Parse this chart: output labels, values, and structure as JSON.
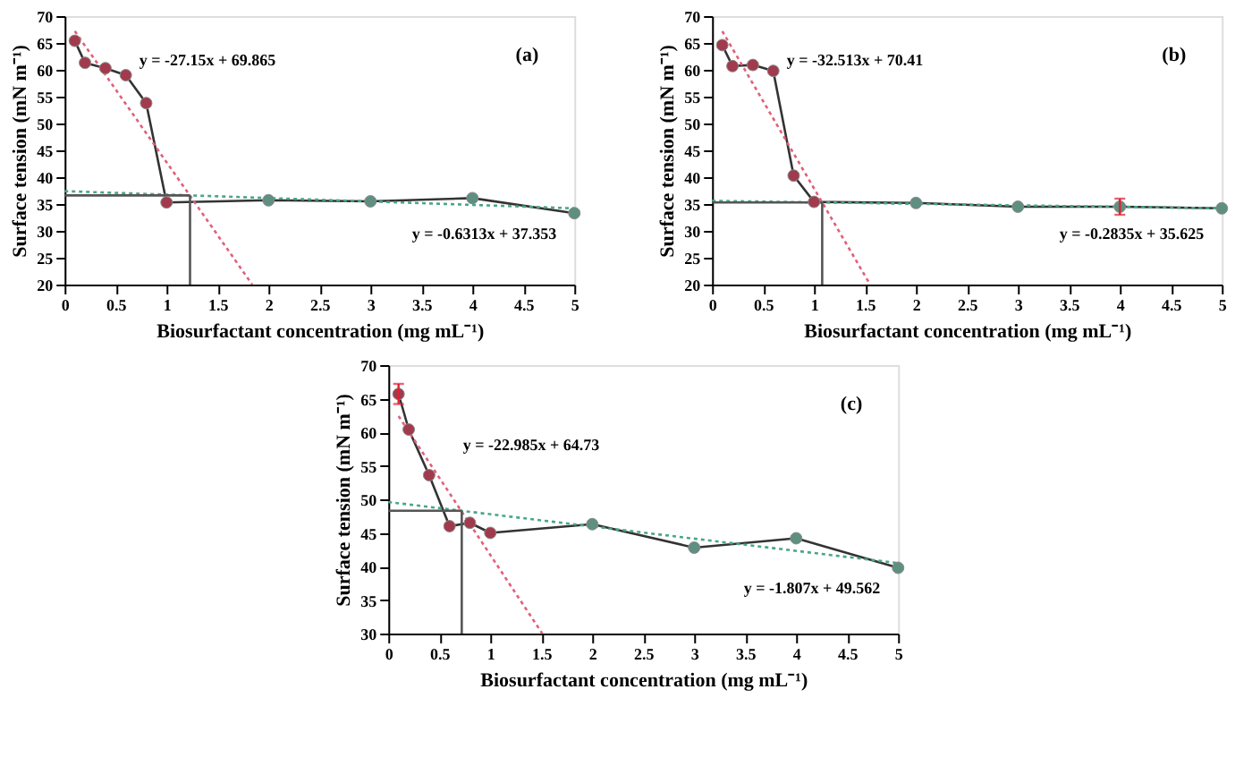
{
  "chart_data": [
    {
      "type": "line",
      "xlabel": "Biosurfactant concentration (mg mL⁻¹)",
      "ylabel": "Surface tension (mN m⁻¹)",
      "xlim": [
        0,
        5
      ],
      "ylim": [
        20,
        70
      ],
      "xticks": [
        0,
        0.5,
        1,
        1.5,
        2,
        2.5,
        3,
        3.5,
        4,
        4.5,
        5
      ],
      "yticks": [
        20,
        25,
        30,
        35,
        40,
        45,
        50,
        55,
        60,
        65,
        70
      ],
      "grid": false,
      "annotations": [
        "(a)"
      ],
      "series": [
        {
          "color": "#333333",
          "line_style": "solid",
          "x": [
            0.1,
            0.2,
            0.4,
            0.6,
            0.8,
            1,
            2,
            3,
            4,
            5
          ],
          "values": [
            65.4,
            61.3,
            60.3,
            59.0,
            53.8,
            35.3,
            35.7,
            35.5,
            36.1,
            33.3
          ]
        },
        {
          "name": "y = -27.15x + 69.865",
          "color": "#e0607a",
          "line_style": "dotted",
          "x": [
            0.1,
            1.84
          ],
          "values": [
            67.2,
            20
          ]
        },
        {
          "name": "y = -0.6313x + 37.353",
          "color": "#4aa58a",
          "line_style": "dotted",
          "x": [
            0,
            5
          ],
          "values": [
            37.4,
            34.2
          ]
        },
        {
          "color": "#555555",
          "line_style": "solid",
          "x": [
            0,
            1.23
          ],
          "values": [
            36.6,
            36.6
          ]
        },
        {
          "color": "#555555",
          "line_style": "solid",
          "x": [
            1.23,
            1.23
          ],
          "values": [
            36.6,
            20
          ]
        },
        {
          "type": "scatter",
          "color": "#a23a4d",
          "marker": "circle",
          "x": [
            0.1,
            0.2,
            0.4,
            0.6,
            0.8,
            1
          ],
          "values": [
            65.4,
            61.3,
            60.3,
            59.0,
            53.8,
            35.3
          ]
        },
        {
          "type": "scatter",
          "color": "#5e8f80",
          "marker": "circle",
          "x": [
            2,
            3,
            4,
            5
          ],
          "values": [
            35.7,
            35.5,
            36.1,
            33.3
          ]
        }
      ]
    },
    {
      "type": "line",
      "xlabel": "Biosurfactant concentration (mg mL⁻¹)",
      "ylabel": "Surface tension (mN m⁻¹)",
      "xlim": [
        0,
        5
      ],
      "ylim": [
        20,
        70
      ],
      "xticks": [
        0,
        0.5,
        1,
        1.5,
        2,
        2.5,
        3,
        3.5,
        4,
        4.5,
        5
      ],
      "yticks": [
        20,
        25,
        30,
        35,
        40,
        45,
        50,
        55,
        60,
        65,
        70
      ],
      "grid": false,
      "annotations": [
        "(b)"
      ],
      "series": [
        {
          "color": "#333333",
          "line_style": "solid",
          "x": [
            0.1,
            0.2,
            0.4,
            0.6,
            0.8,
            1,
            2,
            3,
            4,
            5
          ],
          "values": [
            64.6,
            60.7,
            60.9,
            59.8,
            40.3,
            35.4,
            35.2,
            34.5,
            34.5,
            34.2
          ]
        },
        {
          "name": "y = -32.513x + 70.41",
          "color": "#e0607a",
          "line_style": "dotted",
          "x": [
            0.1,
            1.55
          ],
          "values": [
            67.2,
            20
          ]
        },
        {
          "name": "y = -0.2835x + 35.625",
          "color": "#4aa58a",
          "line_style": "dotted",
          "x": [
            0,
            5
          ],
          "values": [
            35.6,
            34.2
          ]
        },
        {
          "color": "#555555",
          "line_style": "solid",
          "x": [
            0,
            1.08
          ],
          "values": [
            35.3,
            35.3
          ]
        },
        {
          "color": "#555555",
          "line_style": "solid",
          "x": [
            1.08,
            1.08
          ],
          "values": [
            35.3,
            20
          ]
        },
        {
          "type": "scatter",
          "color": "#a23a4d",
          "marker": "circle",
          "x": [
            0.1,
            0.2,
            0.4,
            0.6,
            0.8,
            1
          ],
          "values": [
            64.6,
            60.7,
            60.9,
            59.8,
            40.3,
            35.4
          ]
        },
        {
          "type": "scatter",
          "color": "#5e8f80",
          "marker": "circle",
          "x": [
            2,
            3,
            4,
            5
          ],
          "values": [
            35.2,
            34.5,
            34.5,
            34.2
          ],
          "errors": [
            null,
            null,
            1.5,
            null
          ]
        }
      ]
    },
    {
      "type": "line",
      "xlabel": "Biosurfactant concentration (mg mL⁻¹)",
      "ylabel": "Surface tension (mN m⁻¹)",
      "xlim": [
        0,
        5
      ],
      "ylim": [
        30,
        70
      ],
      "xticks": [
        0,
        0.5,
        1,
        1.5,
        2,
        2.5,
        3,
        3.5,
        4,
        4.5,
        5
      ],
      "yticks": [
        30,
        35,
        40,
        45,
        50,
        55,
        60,
        65,
        70
      ],
      "grid": false,
      "annotations": [
        "(c)"
      ],
      "series": [
        {
          "color": "#333333",
          "line_style": "solid",
          "x": [
            0.1,
            0.2,
            0.4,
            0.6,
            0.8,
            1,
            2,
            3,
            4,
            5
          ],
          "values": [
            65.7,
            60.4,
            53.6,
            46.0,
            46.5,
            45.0,
            46.3,
            42.8,
            44.2,
            39.8
          ]
        },
        {
          "name": "y = -22.985x + 64.73",
          "color": "#e0607a",
          "line_style": "dotted",
          "x": [
            0.1,
            1.51
          ],
          "values": [
            62.4,
            30
          ]
        },
        {
          "name": "y = -1.807x + 49.562",
          "color": "#4aa58a",
          "line_style": "dotted",
          "x": [
            0,
            5
          ],
          "values": [
            49.6,
            40.5
          ]
        },
        {
          "color": "#555555",
          "line_style": "solid",
          "x": [
            0,
            0.72
          ],
          "values": [
            48.3,
            48.3
          ]
        },
        {
          "color": "#555555",
          "line_style": "solid",
          "x": [
            0.72,
            0.72
          ],
          "values": [
            48.3,
            30
          ]
        },
        {
          "type": "scatter",
          "color": "#a23a4d",
          "marker": "circle",
          "x": [
            0.1,
            0.2,
            0.4,
            0.6,
            0.8,
            1
          ],
          "values": [
            65.7,
            60.4,
            53.6,
            46.0,
            46.5,
            45.0
          ],
          "errors": [
            1.5,
            null,
            null,
            null,
            null,
            null
          ]
        },
        {
          "type": "scatter",
          "color": "#5e8f80",
          "marker": "circle",
          "x": [
            2,
            3,
            4,
            5
          ],
          "values": [
            46.3,
            42.8,
            44.2,
            39.8
          ]
        }
      ]
    }
  ]
}
